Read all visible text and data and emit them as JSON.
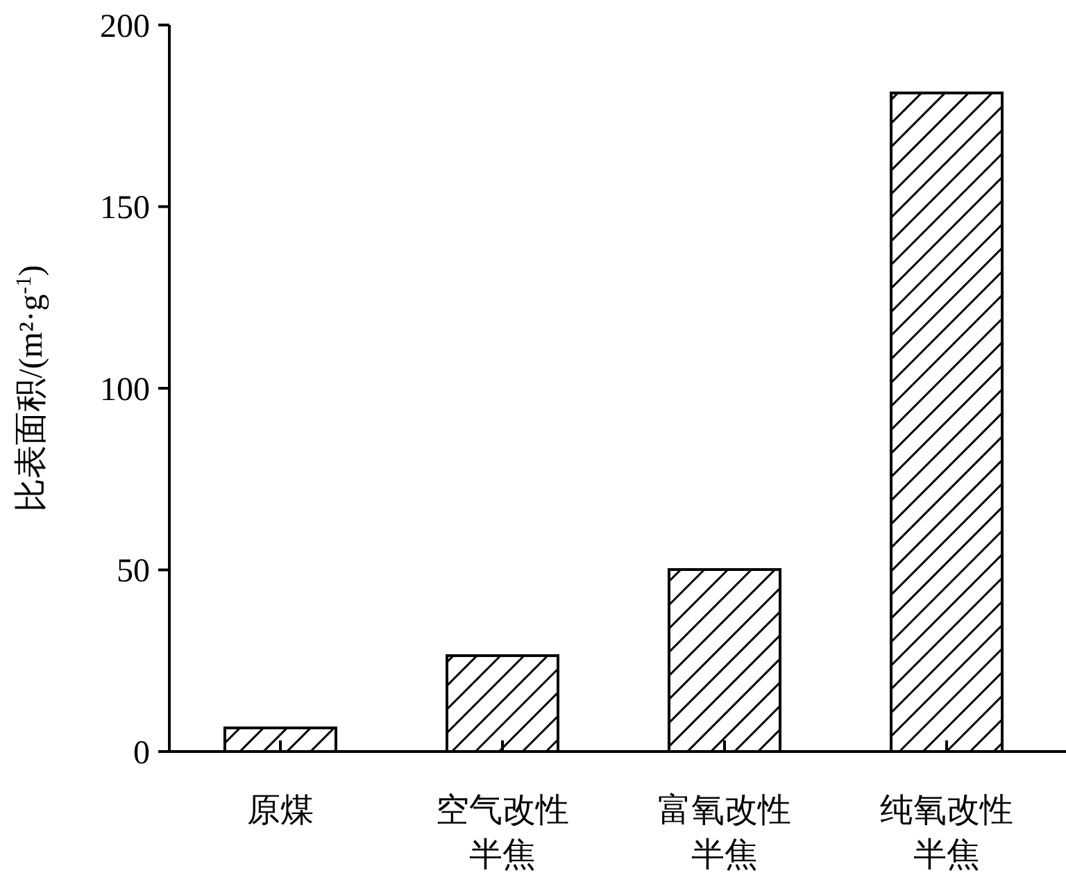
{
  "chart_data": {
    "type": "bar",
    "ylabel": "比表面积/(m²·g$^{-1}$)",
    "categories": [
      "原煤",
      "空气改性半焦",
      "富氧改性半焦",
      "纯氧改性半焦"
    ],
    "values": [
      6.5,
      26.4,
      50.1,
      181.3
    ],
    "color": "#000000",
    "ylim": [
      0,
      200
    ],
    "yticks": [
      0,
      50,
      100,
      150,
      200
    ],
    "grid": false
  }
}
